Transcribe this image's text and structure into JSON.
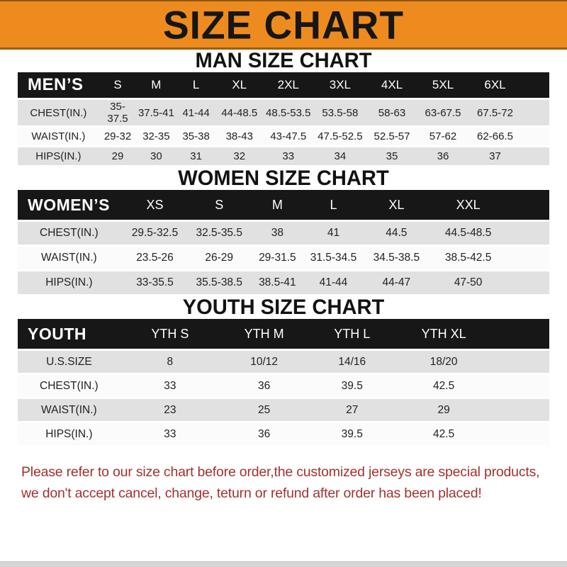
{
  "banner": {
    "title": "SIZE CHART",
    "bg_color": "#EE8B1F"
  },
  "colors": {
    "table_header_bg": "#171717",
    "row_stripe": "#E1E1E1",
    "notice_text": "#A3322C"
  },
  "sections": [
    {
      "title": "MAN SIZE CHART",
      "table": {
        "label": "MEN’S",
        "columns": [
          "S",
          "M",
          "L",
          "XL",
          "2XL",
          "3XL",
          "4XL",
          "5XL",
          "6XL"
        ],
        "rows": [
          {
            "label": "CHEST(IN.)",
            "values": [
              "35-37.5",
              "37.5-41",
              "41-44",
              "44-48.5",
              "48.5-53.5",
              "53.5-58",
              "58-63",
              "63-67.5",
              "67.5-72"
            ]
          },
          {
            "label": "WAIST(IN.)",
            "values": [
              "29-32",
              "32-35",
              "35-38",
              "38-43",
              "43-47.5",
              "47.5-52.5",
              "52.5-57",
              "57-62",
              "62-66.5"
            ]
          },
          {
            "label": "HIPS(IN.)",
            "values": [
              "29",
              "30",
              "31",
              "32",
              "33",
              "34",
              "35",
              "36",
              "37"
            ]
          }
        ]
      }
    },
    {
      "title": "WOMEN SIZE CHART",
      "table": {
        "label": "WOMEN’S",
        "columns": [
          "XS",
          "S",
          "M",
          "L",
          "XL",
          "XXL"
        ],
        "rows": [
          {
            "label": "CHEST(IN.)",
            "values": [
              "29.5-32.5",
              "32.5-35.5",
              "38",
              "41",
              "44.5",
              "44.5-48.5"
            ]
          },
          {
            "label": "WAIST(IN.)",
            "values": [
              "23.5-26",
              "26-29",
              "29-31.5",
              "31.5-34.5",
              "34.5-38.5",
              "38.5-42.5"
            ]
          },
          {
            "label": "HIPS(IN.)",
            "values": [
              "33-35.5",
              "35.5-38.5",
              "38.5-41",
              "41-44",
              "44-47",
              "47-50"
            ]
          }
        ]
      }
    },
    {
      "title": "YOUTH SIZE CHART",
      "table": {
        "label": "YOUTH",
        "columns": [
          "YTH S",
          "YTH M",
          "YTH L",
          "YTH XL"
        ],
        "rows": [
          {
            "label": "U.S.SIZE",
            "values": [
              "8",
              "10/12",
              "14/16",
              "18/20"
            ]
          },
          {
            "label": "CHEST(IN.)",
            "values": [
              "33",
              "36",
              "39.5",
              "42.5"
            ]
          },
          {
            "label": "WAIST(IN.)",
            "values": [
              "23",
              "25",
              "27",
              "29"
            ]
          },
          {
            "label": "HIPS(IN.)",
            "values": [
              "33",
              "36",
              "39.5",
              "42.5"
            ]
          }
        ]
      }
    }
  ],
  "footer": {
    "line1": "Please refer to our size chart before order,the customized jerseys are special products,",
    "line2": "we don't accept cancel, change, teturn or refund after order has been placed!"
  }
}
